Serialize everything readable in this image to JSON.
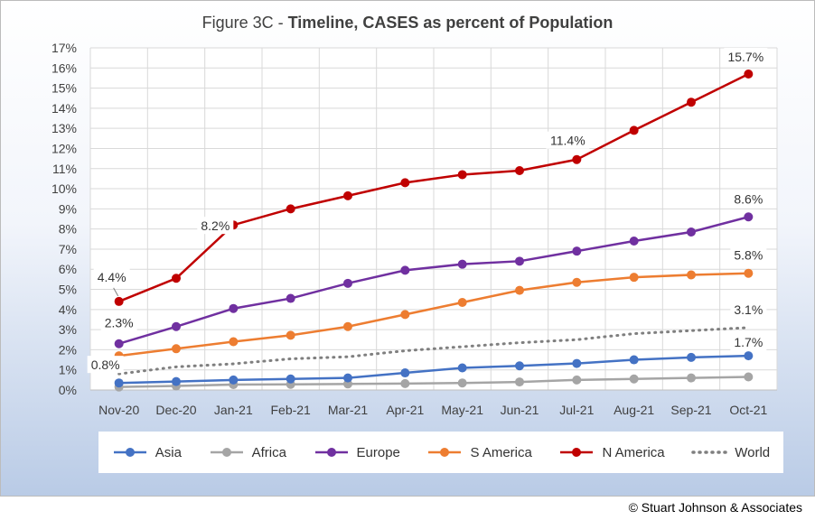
{
  "title_prefix": "Figure 3C - ",
  "title_main": "Timeline, CASES as percent of Population",
  "copyright": "© Stuart Johnson & Associates",
  "chart_data": {
    "type": "line",
    "title": "Figure 3C - Timeline, CASES as percent of Population",
    "categories": [
      "Nov-20",
      "Dec-20",
      "Jan-21",
      "Feb-21",
      "Mar-21",
      "Apr-21",
      "May-21",
      "Jun-21",
      "Jul-21",
      "Aug-21",
      "Sep-21",
      "Oct-21"
    ],
    "ylim": [
      0,
      17
    ],
    "y_ticks": [
      "0%",
      "1%",
      "2%",
      "3%",
      "4%",
      "5%",
      "6%",
      "7%",
      "8%",
      "9%",
      "10%",
      "11%",
      "12%",
      "13%",
      "14%",
      "15%",
      "16%",
      "17%"
    ],
    "grid": true,
    "legend_position": "bottom",
    "series": [
      {
        "name": "Asia",
        "color": "#4472c4",
        "style": "solid",
        "values": [
          0.35,
          0.42,
          0.5,
          0.55,
          0.6,
          0.85,
          1.1,
          1.2,
          1.32,
          1.5,
          1.62,
          1.7
        ]
      },
      {
        "name": "Africa",
        "color": "#a5a5a5",
        "style": "solid",
        "values": [
          0.15,
          0.2,
          0.27,
          0.28,
          0.3,
          0.32,
          0.35,
          0.4,
          0.5,
          0.55,
          0.6,
          0.65
        ]
      },
      {
        "name": "Europe",
        "color": "#7030a0",
        "style": "solid",
        "values": [
          2.3,
          3.15,
          4.05,
          4.55,
          5.3,
          5.95,
          6.25,
          6.4,
          6.9,
          7.4,
          7.85,
          8.6
        ]
      },
      {
        "name": "S America",
        "color": "#ed7d31",
        "style": "solid",
        "values": [
          1.7,
          2.05,
          2.4,
          2.72,
          3.15,
          3.75,
          4.35,
          4.95,
          5.35,
          5.6,
          5.72,
          5.8
        ]
      },
      {
        "name": "N America",
        "color": "#c00000",
        "style": "solid",
        "values": [
          4.4,
          5.55,
          8.2,
          9.0,
          9.65,
          10.3,
          10.7,
          10.9,
          11.45,
          12.9,
          14.3,
          15.7
        ]
      },
      {
        "name": "World",
        "color": "#7f7f7f",
        "style": "dotted",
        "values": [
          0.8,
          1.15,
          1.3,
          1.55,
          1.65,
          1.95,
          2.15,
          2.35,
          2.5,
          2.8,
          2.95,
          3.1
        ]
      }
    ],
    "annotations": [
      {
        "text": "4.4%",
        "series": "N America",
        "category": "Nov-20"
      },
      {
        "text": "8.2%",
        "series": "N America",
        "category": "Jan-21"
      },
      {
        "text": "11.4%",
        "series": "N America",
        "category": "Jul-21"
      },
      {
        "text": "15.7%",
        "series": "N America",
        "category": "Oct-21"
      },
      {
        "text": "2.3%",
        "series": "Europe",
        "category": "Nov-20"
      },
      {
        "text": "8.6%",
        "series": "Europe",
        "category": "Oct-21"
      },
      {
        "text": "5.8%",
        "series": "S America",
        "category": "Oct-21"
      },
      {
        "text": "0.8%",
        "series": "World",
        "category": "Nov-20"
      },
      {
        "text": "3.1%",
        "series": "World",
        "category": "Oct-21"
      },
      {
        "text": "1.7%",
        "series": "Asia",
        "category": "Oct-21"
      }
    ]
  }
}
